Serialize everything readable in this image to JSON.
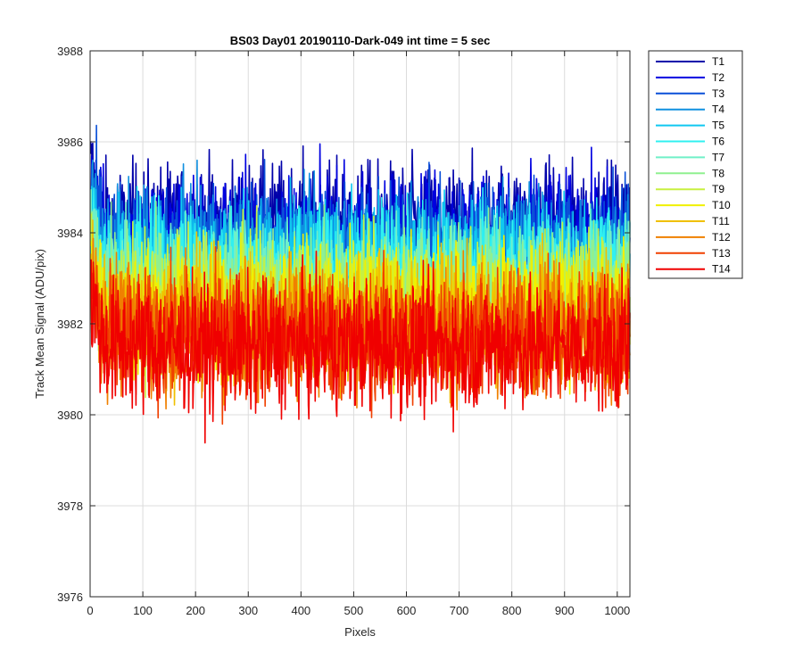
{
  "chart_data": {
    "type": "line",
    "title": "BS03 Day01 20190110-Dark-049 int time = 5 sec",
    "xlabel": "Pixels",
    "ylabel": "Track Mean Signal (ADU/pix)",
    "xlim": [
      0,
      1024
    ],
    "ylim": [
      3976,
      3988
    ],
    "x_ticks": [
      0,
      100,
      200,
      300,
      400,
      500,
      600,
      700,
      800,
      900,
      1000
    ],
    "y_ticks": [
      3976,
      3978,
      3980,
      3982,
      3984,
      3986,
      3988
    ],
    "grid": true,
    "legend_position": "outside-top-right",
    "x_points": 1024,
    "noise_amplitude": 1.15,
    "series": [
      {
        "name": "T1",
        "color": "#0000aa",
        "mean": 3984.1
      },
      {
        "name": "T2",
        "color": "#0000e0",
        "mean": 3983.9
      },
      {
        "name": "T3",
        "color": "#0a50d8",
        "mean": 3983.7
      },
      {
        "name": "T4",
        "color": "#1090e0",
        "mean": 3983.5
      },
      {
        "name": "T5",
        "color": "#10c8f0",
        "mean": 3983.3
      },
      {
        "name": "T6",
        "color": "#30f0f0",
        "mean": 3983.1
      },
      {
        "name": "T7",
        "color": "#70f0c8",
        "mean": 3982.9
      },
      {
        "name": "T8",
        "color": "#90f090",
        "mean": 3982.7
      },
      {
        "name": "T9",
        "color": "#c8f040",
        "mean": 3982.5
      },
      {
        "name": "T10",
        "color": "#f0f000",
        "mean": 3982.3
      },
      {
        "name": "T11",
        "color": "#f0c000",
        "mean": 3982.1
      },
      {
        "name": "T12",
        "color": "#f08000",
        "mean": 3981.9
      },
      {
        "name": "T13",
        "color": "#f04000",
        "mean": 3981.7
      },
      {
        "name": "T14",
        "color": "#f00000",
        "mean": 3981.5
      }
    ]
  }
}
